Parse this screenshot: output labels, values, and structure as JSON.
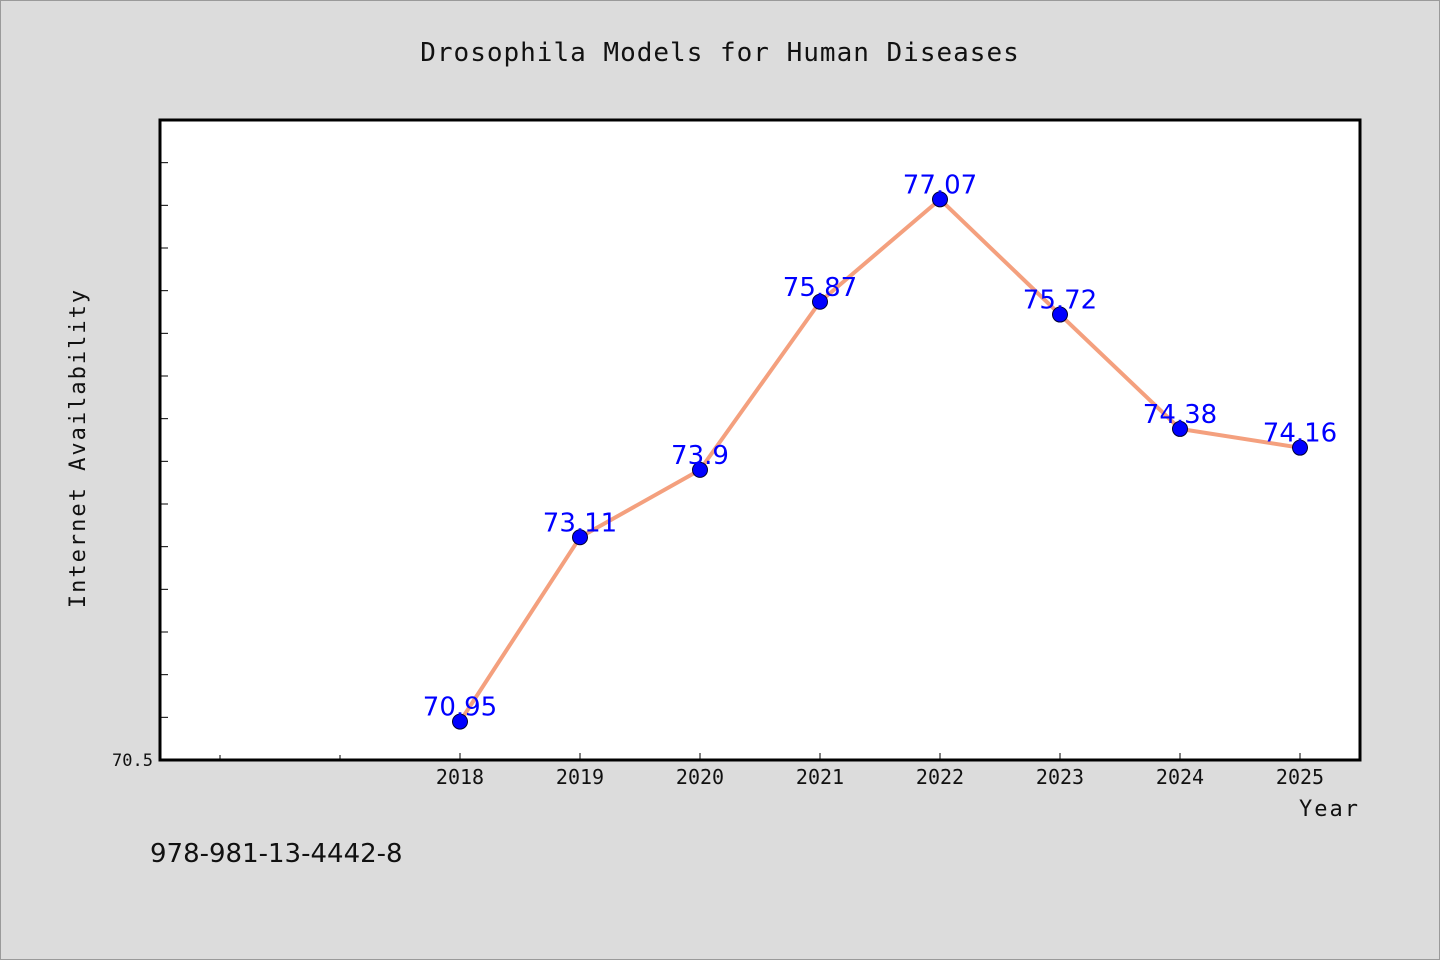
{
  "chart_data": {
    "type": "line",
    "title": "Drosophila Models for Human Diseases",
    "xlabel": "Year",
    "ylabel": "Internet Availability",
    "x": [
      "2018",
      "2019",
      "2020",
      "2021",
      "2022",
      "2023",
      "2024",
      "2025"
    ],
    "series": [
      {
        "values": [
          70.95,
          73.11,
          73.9,
          75.87,
          77.07,
          75.72,
          74.38,
          74.16
        ],
        "labels": [
          "70.95",
          "73.11",
          "73.9",
          "75.87",
          "77.07",
          "75.72",
          "74.38",
          "74.16"
        ]
      }
    ],
    "ylim": [
      70.5,
      78.0
    ],
    "ytick_labels": [
      "70.5"
    ],
    "grid": false,
    "colors": {
      "line": "#f4a07e",
      "marker": "#0000ff",
      "data_label": "#0000ff",
      "background": "#dcdcdc",
      "plot_background": "#ffffff"
    }
  },
  "footer": {
    "isbn": "978-981-13-4442-8"
  }
}
